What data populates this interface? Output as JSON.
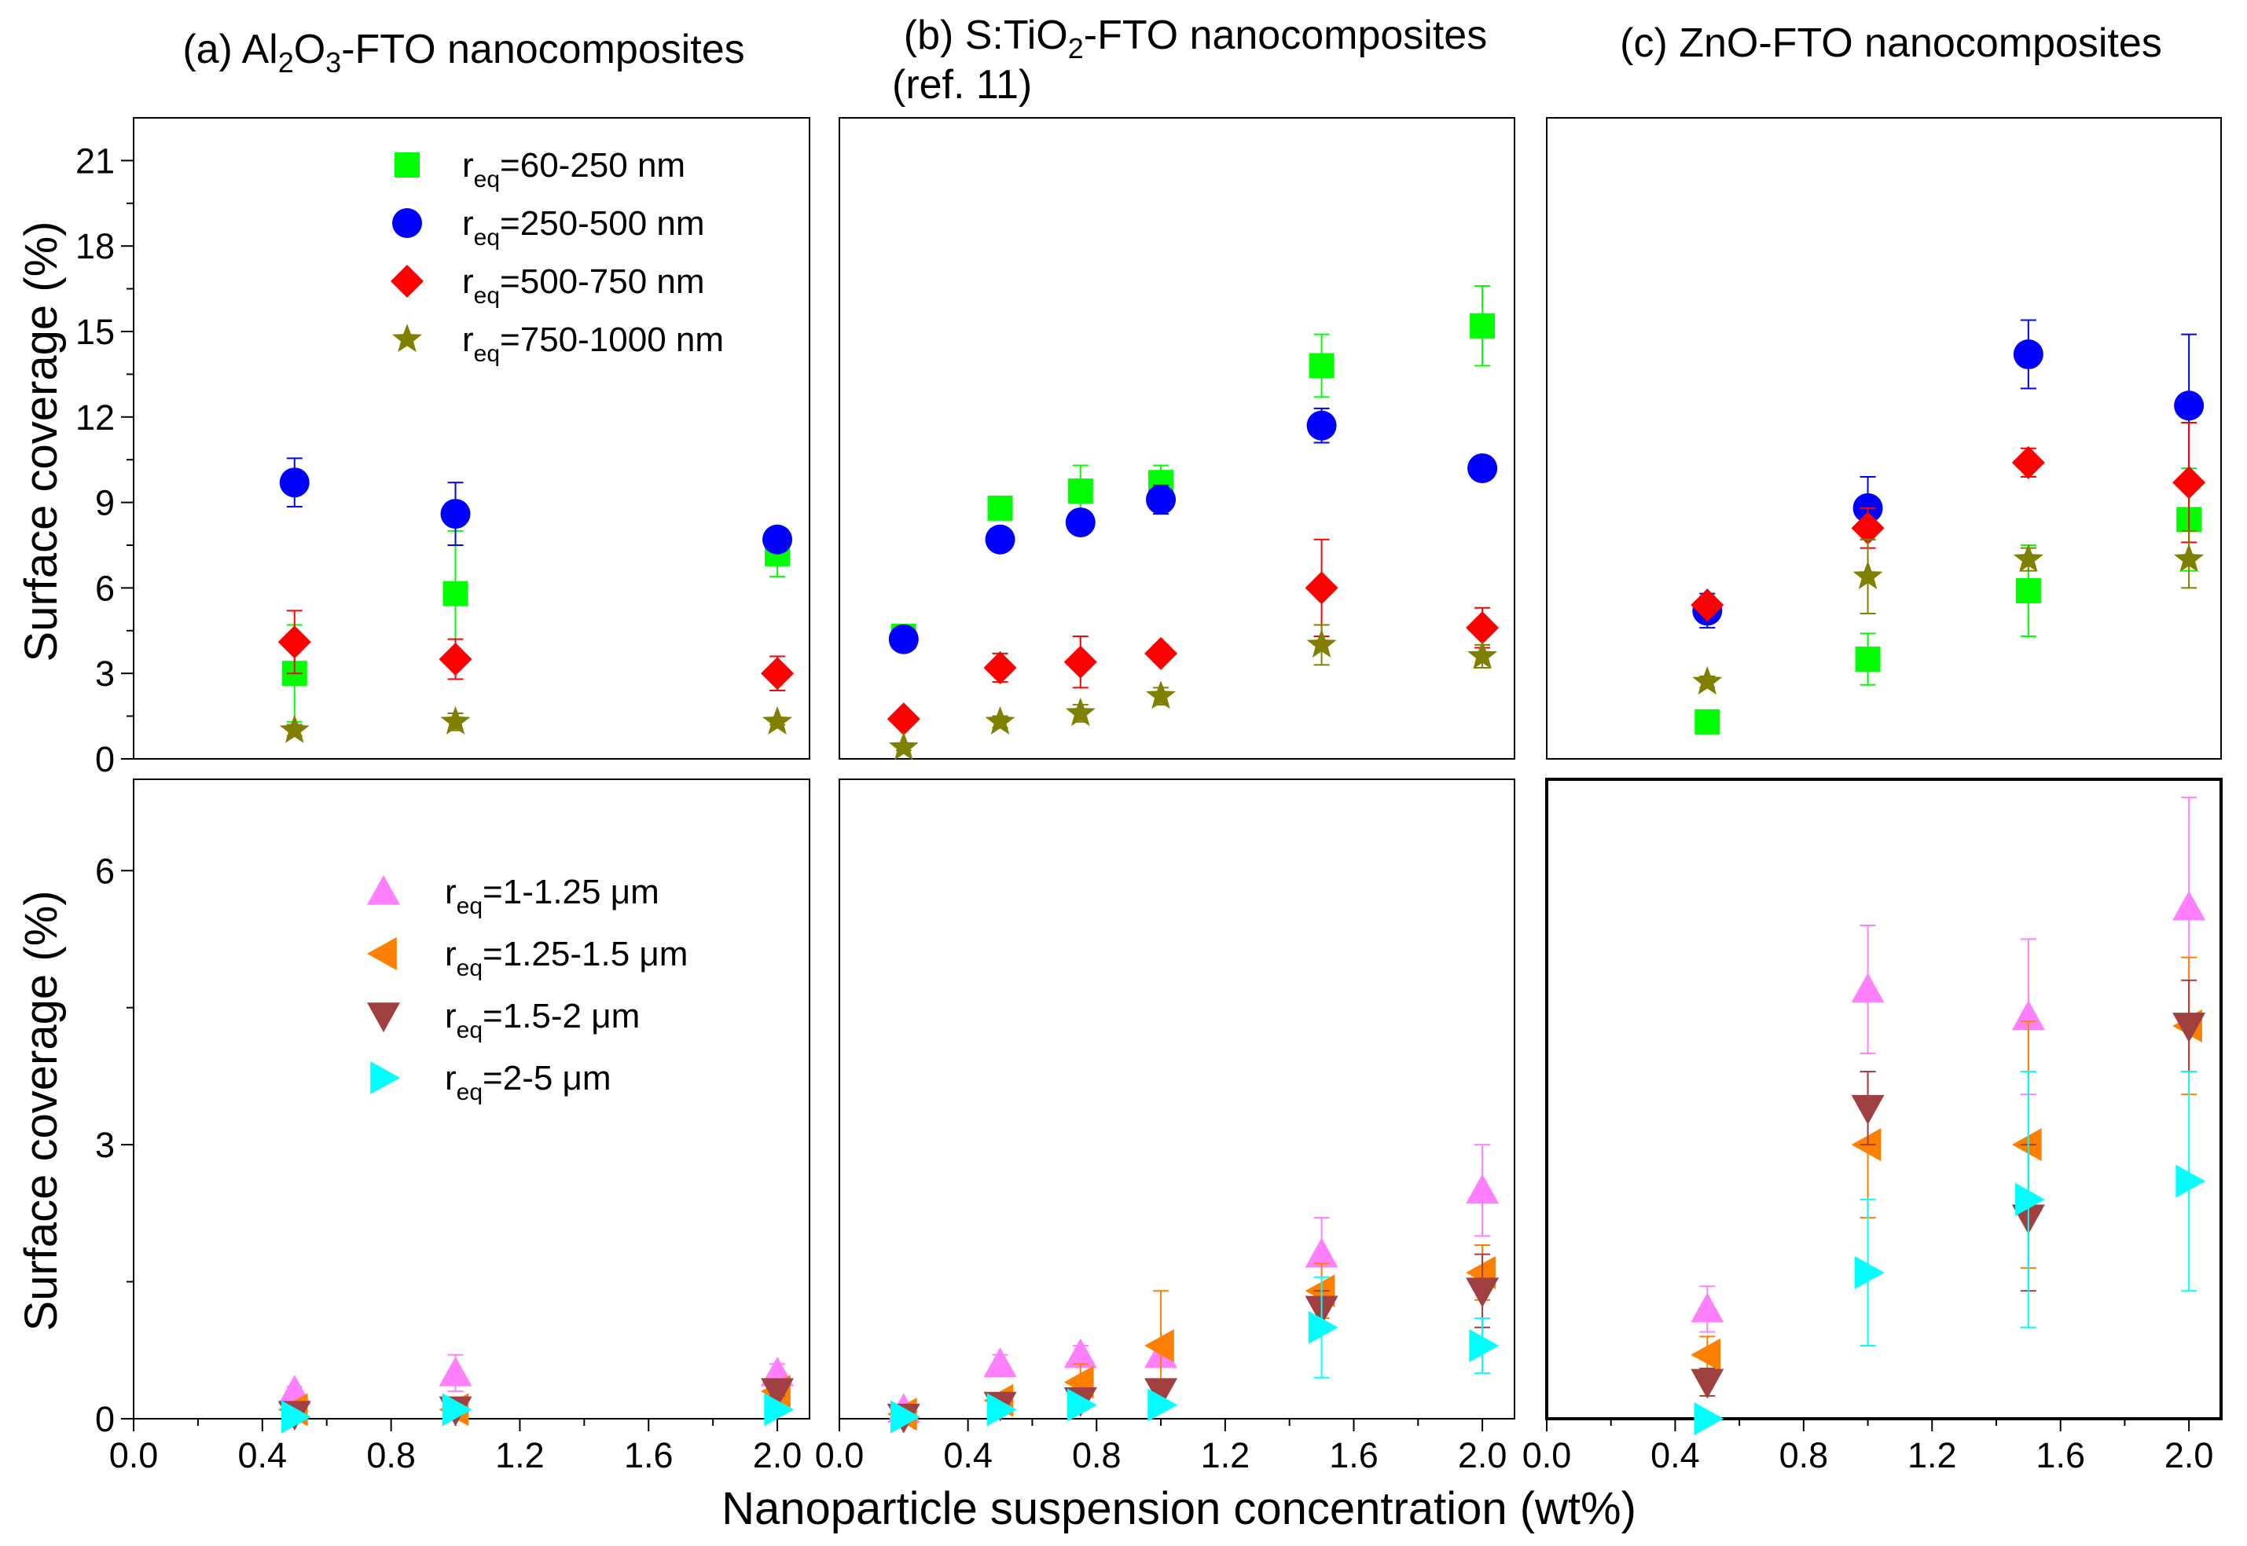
{
  "figure": {
    "xlabel": "Nanoparticle suspension concentration (wt%)",
    "ylabel": "Surface coverage (%)",
    "x_ticks": [
      "0.0",
      "0.4",
      "0.8",
      "1.2",
      "1.6",
      "2.0"
    ],
    "top_y_ticks": [
      "0",
      "3",
      "6",
      "9",
      "12",
      "15",
      "18",
      "21"
    ],
    "bottom_y_ticks": [
      "0",
      "3",
      "6"
    ]
  },
  "panels": [
    {
      "title_parts": [
        {
          "t": "(a) Al",
          "s": "normal"
        },
        {
          "t": "2",
          "s": "sub"
        },
        {
          "t": "O",
          "s": "normal"
        },
        {
          "t": "3",
          "s": "sub"
        },
        {
          "t": "-FTO nanocomposites",
          "s": "normal"
        }
      ]
    },
    {
      "title_parts": [
        {
          "t": "(b) S:TiO",
          "s": "normal"
        },
        {
          "t": "2",
          "s": "sub"
        },
        {
          "t": "-FTO nanocomposites",
          "s": "normal"
        }
      ],
      "title_line2": "(ref. 11)"
    },
    {
      "title_parts": [
        {
          "t": "(c) ZnO-FTO nanocomposites",
          "s": "normal"
        }
      ]
    }
  ],
  "legends": {
    "top": [
      {
        "series": "r_60_250",
        "pre": "r",
        "sub": "eq",
        "post": "=60-250 nm",
        "marker": "square",
        "color": "#00ff00"
      },
      {
        "series": "r_250_500",
        "pre": "r",
        "sub": "eq",
        "post": "=250-500 nm",
        "marker": "circle",
        "color": "#0000ff"
      },
      {
        "series": "r_500_750",
        "pre": "r",
        "sub": "eq",
        "post": "=500-750 nm",
        "marker": "diamond",
        "color": "#ff0000"
      },
      {
        "series": "r_750_1000",
        "pre": "r",
        "sub": "eq",
        "post": "=750-1000 nm",
        "marker": "star",
        "color": "#808000"
      }
    ],
    "bottom": [
      {
        "series": "r_1_125",
        "pre": "r",
        "sub": "eq",
        "post": "=1-1.25 μm",
        "marker": "triangle-up",
        "color": "#ff80ff"
      },
      {
        "series": "r_125_15",
        "pre": "r",
        "sub": "eq",
        "post": "=1.25-1.5 μm",
        "marker": "triangle-left",
        "color": "#ff8000"
      },
      {
        "series": "r_15_2",
        "pre": "r",
        "sub": "eq",
        "post": "=1.5-2 μm",
        "marker": "triangle-down",
        "color": "#a04040"
      },
      {
        "series": "r_2_5",
        "pre": "r",
        "sub": "eq",
        "post": "=2-5 μm",
        "marker": "triangle-right",
        "color": "#00ffff"
      }
    ]
  },
  "chart_data": [
    {
      "type": "scatter",
      "panel": "a",
      "row": "top",
      "title": "(a) Al2O3-FTO nanocomposites",
      "xlabel": "Nanoparticle suspension concentration (wt%)",
      "ylabel": "Surface coverage (%)",
      "xlim": [
        0,
        2.1
      ],
      "ylim": [
        0,
        22.5
      ],
      "series": [
        {
          "name": "r_eq=60-250 nm",
          "marker": "square",
          "color": "#00ff00",
          "points": [
            {
              "x": 0.5,
              "y": 3.0,
              "err": 1.7
            },
            {
              "x": 1.0,
              "y": 5.8,
              "err": 2.2
            },
            {
              "x": 2.0,
              "y": 7.2,
              "err": 0.8
            }
          ]
        },
        {
          "name": "r_eq=250-500 nm",
          "marker": "circle",
          "color": "#0000ff",
          "points": [
            {
              "x": 0.5,
              "y": 9.7,
              "err": 0.85
            },
            {
              "x": 1.0,
              "y": 8.6,
              "err": 1.1
            },
            {
              "x": 2.0,
              "y": 7.7,
              "err": 0.2
            }
          ]
        },
        {
          "name": "r_eq=500-750 nm",
          "marker": "diamond",
          "color": "#ff0000",
          "points": [
            {
              "x": 0.5,
              "y": 4.1,
              "err": 1.1
            },
            {
              "x": 1.0,
              "y": 3.5,
              "err": 0.7
            },
            {
              "x": 2.0,
              "y": 3.0,
              "err": 0.6
            }
          ]
        },
        {
          "name": "r_eq=750-1000 nm",
          "marker": "star",
          "color": "#808000",
          "points": [
            {
              "x": 0.5,
              "y": 1.0,
              "err": 0.2
            },
            {
              "x": 1.0,
              "y": 1.3,
              "err": 0.3
            },
            {
              "x": 2.0,
              "y": 1.3,
              "err": 0.1
            }
          ]
        }
      ]
    },
    {
      "type": "scatter",
      "panel": "b",
      "row": "top",
      "title": "(b) S:TiO2-FTO nanocomposites (ref. 11)",
      "xlim": [
        0,
        2.1
      ],
      "ylim": [
        0,
        22.5
      ],
      "series": [
        {
          "name": "r_eq=60-250 nm",
          "marker": "square",
          "color": "#00ff00",
          "points": [
            {
              "x": 0.2,
              "y": 4.3,
              "err": 0.2
            },
            {
              "x": 0.5,
              "y": 8.8,
              "err": 0.4
            },
            {
              "x": 0.75,
              "y": 9.4,
              "err": 0.9
            },
            {
              "x": 1.0,
              "y": 9.7,
              "err": 0.6
            },
            {
              "x": 1.5,
              "y": 13.8,
              "err": 1.1
            },
            {
              "x": 2.0,
              "y": 15.2,
              "err": 1.4
            }
          ]
        },
        {
          "name": "r_eq=250-500 nm",
          "marker": "circle",
          "color": "#0000ff",
          "points": [
            {
              "x": 0.2,
              "y": 4.2,
              "err": 0.3
            },
            {
              "x": 0.5,
              "y": 7.7,
              "err": 0.3
            },
            {
              "x": 0.75,
              "y": 8.3,
              "err": 0.3
            },
            {
              "x": 1.0,
              "y": 9.1,
              "err": 0.5
            },
            {
              "x": 1.5,
              "y": 11.7,
              "err": 0.6
            },
            {
              "x": 2.0,
              "y": 10.2,
              "err": 0.3
            }
          ]
        },
        {
          "name": "r_eq=500-750 nm",
          "marker": "diamond",
          "color": "#ff0000",
          "points": [
            {
              "x": 0.2,
              "y": 1.4,
              "err": 0.2
            },
            {
              "x": 0.5,
              "y": 3.2,
              "err": 0.5
            },
            {
              "x": 0.75,
              "y": 3.4,
              "err": 0.9
            },
            {
              "x": 1.0,
              "y": 3.7,
              "err": 0.3
            },
            {
              "x": 1.5,
              "y": 6.0,
              "err": 1.7
            },
            {
              "x": 2.0,
              "y": 4.6,
              "err": 0.7
            }
          ]
        },
        {
          "name": "r_eq=750-1000 nm",
          "marker": "star",
          "color": "#808000",
          "points": [
            {
              "x": 0.2,
              "y": 0.4,
              "err": 0.1
            },
            {
              "x": 0.5,
              "y": 1.3,
              "err": 0.2
            },
            {
              "x": 0.75,
              "y": 1.6,
              "err": 0.3
            },
            {
              "x": 1.0,
              "y": 2.2,
              "err": 0.3
            },
            {
              "x": 1.5,
              "y": 4.0,
              "err": 0.7
            },
            {
              "x": 2.0,
              "y": 3.6,
              "err": 0.4
            }
          ]
        }
      ]
    },
    {
      "type": "scatter",
      "panel": "c",
      "row": "top",
      "title": "(c) ZnO-FTO nanocomposites",
      "xlim": [
        0,
        2.1
      ],
      "ylim": [
        0,
        22.5
      ],
      "series": [
        {
          "name": "r_eq=60-250 nm",
          "marker": "square",
          "color": "#00ff00",
          "points": [
            {
              "x": 0.5,
              "y": 1.3,
              "err": 0.2
            },
            {
              "x": 1.0,
              "y": 3.5,
              "err": 0.9
            },
            {
              "x": 1.5,
              "y": 5.9,
              "err": 1.6
            },
            {
              "x": 2.0,
              "y": 8.4,
              "err": 1.8
            }
          ]
        },
        {
          "name": "r_eq=250-500 nm",
          "marker": "circle",
          "color": "#0000ff",
          "points": [
            {
              "x": 0.5,
              "y": 5.2,
              "err": 0.6
            },
            {
              "x": 1.0,
              "y": 8.8,
              "err": 1.1
            },
            {
              "x": 1.5,
              "y": 14.2,
              "err": 1.2
            },
            {
              "x": 2.0,
              "y": 12.4,
              "err": 2.5
            }
          ]
        },
        {
          "name": "r_eq=500-750 nm",
          "marker": "diamond",
          "color": "#ff0000",
          "points": [
            {
              "x": 0.5,
              "y": 5.4,
              "err": 0.3
            },
            {
              "x": 1.0,
              "y": 8.1,
              "err": 0.7
            },
            {
              "x": 1.5,
              "y": 10.4,
              "err": 0.5
            },
            {
              "x": 2.0,
              "y": 9.7,
              "err": 2.1
            }
          ]
        },
        {
          "name": "r_eq=750-1000 nm",
          "marker": "star",
          "color": "#808000",
          "points": [
            {
              "x": 0.5,
              "y": 2.7,
              "err": 0.2
            },
            {
              "x": 1.0,
              "y": 6.4,
              "err": 1.3
            },
            {
              "x": 1.5,
              "y": 7.0,
              "err": 0.4
            },
            {
              "x": 2.0,
              "y": 7.0,
              "err": 1.0
            }
          ]
        }
      ]
    },
    {
      "type": "scatter",
      "panel": "a",
      "row": "bottom",
      "xlim": [
        0,
        2.1
      ],
      "ylim": [
        0,
        7.0
      ],
      "series": [
        {
          "name": "r_eq=1-1.25 μm",
          "marker": "triangle-up",
          "color": "#ff80ff",
          "points": [
            {
              "x": 0.5,
              "y": 0.3,
              "err": 0.05
            },
            {
              "x": 1.0,
              "y": 0.5,
              "err": 0.2
            },
            {
              "x": 2.0,
              "y": 0.5,
              "err": 0.1
            }
          ]
        },
        {
          "name": "r_eq=1.25-1.5 μm",
          "marker": "triangle-left",
          "color": "#ff8000",
          "points": [
            {
              "x": 0.5,
              "y": 0.1,
              "err": 0.05
            },
            {
              "x": 1.0,
              "y": 0.1,
              "err": 0.05
            },
            {
              "x": 2.0,
              "y": 0.3,
              "err": 0.05
            }
          ]
        },
        {
          "name": "r_eq=1.5-2 μm",
          "marker": "triangle-down",
          "color": "#a04040",
          "points": [
            {
              "x": 0.5,
              "y": 0.05,
              "err": 0.03
            },
            {
              "x": 1.0,
              "y": 0.1,
              "err": 0.05
            },
            {
              "x": 2.0,
              "y": 0.3,
              "err": 0.05
            }
          ]
        },
        {
          "name": "r_eq=2-5 μm",
          "marker": "triangle-right",
          "color": "#00ffff",
          "points": [
            {
              "x": 0.5,
              "y": 0.02,
              "err": 0.02
            },
            {
              "x": 1.0,
              "y": 0.1,
              "err": 0.05
            },
            {
              "x": 2.0,
              "y": 0.1,
              "err": 0.05
            }
          ]
        }
      ]
    },
    {
      "type": "scatter",
      "panel": "b",
      "row": "bottom",
      "xlim": [
        0,
        2.1
      ],
      "ylim": [
        0,
        7.0
      ],
      "series": [
        {
          "name": "r_eq=1-1.25 μm",
          "marker": "triangle-up",
          "color": "#ff80ff",
          "points": [
            {
              "x": 0.2,
              "y": 0.1,
              "err": 0.05
            },
            {
              "x": 0.5,
              "y": 0.6,
              "err": 0.1
            },
            {
              "x": 0.75,
              "y": 0.7,
              "err": 0.1
            },
            {
              "x": 1.0,
              "y": 0.7,
              "err": 0.1
            },
            {
              "x": 1.5,
              "y": 1.8,
              "err": 0.4
            },
            {
              "x": 2.0,
              "y": 2.5,
              "err": 0.5
            }
          ]
        },
        {
          "name": "r_eq=1.25-1.5 μm",
          "marker": "triangle-left",
          "color": "#ff8000",
          "points": [
            {
              "x": 0.2,
              "y": 0.05,
              "err": 0.03
            },
            {
              "x": 0.5,
              "y": 0.2,
              "err": 0.05
            },
            {
              "x": 0.75,
              "y": 0.4,
              "err": 0.2
            },
            {
              "x": 1.0,
              "y": 0.8,
              "err": 0.6
            },
            {
              "x": 1.5,
              "y": 1.4,
              "err": 0.3
            },
            {
              "x": 2.0,
              "y": 1.6,
              "err": 0.3
            }
          ]
        },
        {
          "name": "r_eq=1.5-2 μm",
          "marker": "triangle-down",
          "color": "#a04040",
          "points": [
            {
              "x": 0.2,
              "y": 0.02,
              "err": 0.02
            },
            {
              "x": 0.5,
              "y": 0.15,
              "err": 0.05
            },
            {
              "x": 0.75,
              "y": 0.2,
              "err": 0.1
            },
            {
              "x": 1.0,
              "y": 0.3,
              "err": 0.1
            },
            {
              "x": 1.5,
              "y": 1.2,
              "err": 0.2
            },
            {
              "x": 2.0,
              "y": 1.4,
              "err": 0.4
            }
          ]
        },
        {
          "name": "r_eq=2-5 μm",
          "marker": "triangle-right",
          "color": "#00ffff",
          "points": [
            {
              "x": 0.2,
              "y": 0.02,
              "err": 0.02
            },
            {
              "x": 0.5,
              "y": 0.1,
              "err": 0.05
            },
            {
              "x": 0.75,
              "y": 0.15,
              "err": 0.05
            },
            {
              "x": 1.0,
              "y": 0.15,
              "err": 0.05
            },
            {
              "x": 1.5,
              "y": 1.0,
              "err": 0.55
            },
            {
              "x": 2.0,
              "y": 0.8,
              "err": 0.3
            }
          ]
        }
      ]
    },
    {
      "type": "scatter",
      "panel": "c",
      "row": "bottom",
      "xlim": [
        0,
        2.1
      ],
      "ylim": [
        0,
        7.0
      ],
      "series": [
        {
          "name": "r_eq=1-1.25 μm",
          "marker": "triangle-up",
          "color": "#ff80ff",
          "points": [
            {
              "x": 0.5,
              "y": 1.2,
              "err": 0.25
            },
            {
              "x": 1.0,
              "y": 4.7,
              "err": 0.7
            },
            {
              "x": 1.5,
              "y": 4.4,
              "err": 0.85
            },
            {
              "x": 2.0,
              "y": 5.6,
              "err": 1.2
            }
          ]
        },
        {
          "name": "r_eq=1.25-1.5 μm",
          "marker": "triangle-left",
          "color": "#ff8000",
          "points": [
            {
              "x": 0.5,
              "y": 0.7,
              "err": 0.2
            },
            {
              "x": 1.0,
              "y": 3.0,
              "err": 0.8
            },
            {
              "x": 1.5,
              "y": 3.0,
              "err": 1.35
            },
            {
              "x": 2.0,
              "y": 4.3,
              "err": 0.75
            }
          ]
        },
        {
          "name": "r_eq=1.5-2 μm",
          "marker": "triangle-down",
          "color": "#a04040",
          "points": [
            {
              "x": 0.5,
              "y": 0.4,
              "err": 0.15
            },
            {
              "x": 1.0,
              "y": 3.4,
              "err": 0.4
            },
            {
              "x": 1.5,
              "y": 2.2,
              "err": 0.8
            },
            {
              "x": 2.0,
              "y": 4.3,
              "err": 0.5
            }
          ]
        },
        {
          "name": "r_eq=2-5 μm",
          "marker": "triangle-right",
          "color": "#00ffff",
          "points": [
            {
              "x": 0.5,
              "y": 0.0,
              "err": 0.0
            },
            {
              "x": 1.0,
              "y": 1.6,
              "err": 0.8
            },
            {
              "x": 1.5,
              "y": 2.4,
              "err": 1.4
            },
            {
              "x": 2.0,
              "y": 2.6,
              "err": 1.2
            }
          ]
        }
      ]
    }
  ]
}
